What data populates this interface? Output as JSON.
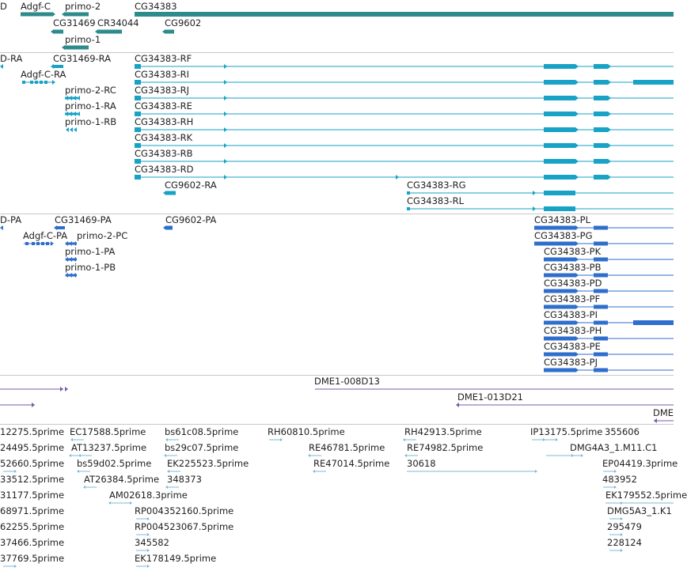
{
  "colors": {
    "gene": "#2e8b8b",
    "transcript": "#17a2c6",
    "protein": "#2f6ecc",
    "clone": "#7a5aa8",
    "est": "#7db8d6",
    "separator": "#c8c8c8"
  },
  "tracks": {
    "genes": {
      "labels": [
        "D",
        "Adgf-C",
        "primo-2",
        "CG34383",
        "CG31469",
        "CR34044",
        "CG9602",
        "primo-1"
      ]
    },
    "transcripts": {
      "labels": [
        "D-RA",
        "CG31469-RA",
        "Adgf-C-RA",
        "primo-2-RC",
        "primo-1-RA",
        "primo-1-RB",
        "CG34383-RF",
        "CG34383-RI",
        "CG34383-RJ",
        "CG34383-RE",
        "CG34383-RH",
        "CG34383-RK",
        "CG34383-RB",
        "CG34383-RD",
        "CG9602-RA",
        "CG34383-RG",
        "CG34383-RL"
      ]
    },
    "proteins": {
      "labels": [
        "D-PA",
        "CG31469-PA",
        "CG9602-PA",
        "Adgf-C-PA",
        "primo-2-PC",
        "primo-1-PA",
        "primo-1-PB",
        "CG34383-PL",
        "CG34383-PG",
        "CG34383-PK",
        "CG34383-PB",
        "CG34383-PD",
        "CG34383-PF",
        "CG34383-PI",
        "CG34383-PH",
        "CG34383-PE",
        "CG34383-PJ"
      ]
    },
    "clones": {
      "labels": [
        "DME1-008D13",
        "DME1-013D21",
        "DME"
      ]
    },
    "ests": {
      "labels": [
        "12275.5prime",
        "EC17588.5prime",
        "bs61c08.5prime",
        "RH60810.5prime",
        "RH42913.5prime",
        "IP13175.5prime",
        "355606",
        "24495.5prime",
        "AT13237.5prime",
        "bs29c07.5prime",
        "RE46781.5prime",
        "RE74982.5prime",
        "DMG4A3_1.M11.C1",
        "52660.5prime",
        "bs59d02.5prime",
        "EK225523.5prime",
        "RE47014.5prime",
        "30618",
        "EP04419.3prime",
        "33512.5prime",
        "AT26384.5prime",
        "348373",
        "483952",
        "31177.5prime",
        "AM02618.3prime",
        "EK179552.5prime",
        "68971.5prime",
        "RP004352160.5prime",
        "DMG5A3_1.K1",
        "62255.5prime",
        "RP004523067.5prime",
        "295479",
        "37466.5prime",
        "345582",
        "228124",
        "37769.5prime",
        "EK178149.5prime"
      ]
    }
  }
}
